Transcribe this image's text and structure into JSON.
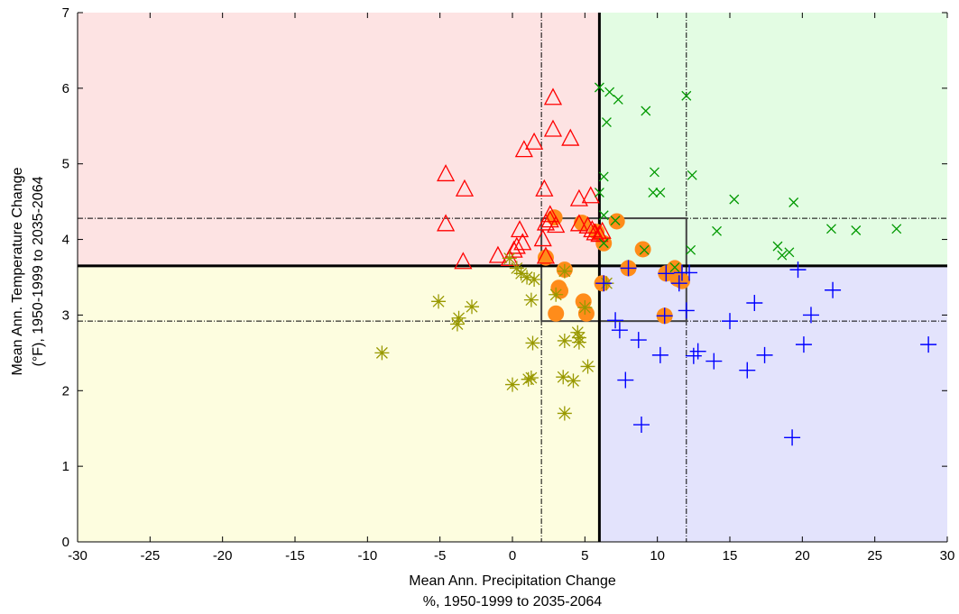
{
  "chart_data": {
    "type": "scatter",
    "title": "",
    "xlabel": [
      "Mean Ann. Precipitation Change",
      "%, 1950-1999 to 2035-2064"
    ],
    "ylabel": [
      "Mean Ann. Temperature Change",
      "(°F), 1950-1999 to 2035-2064"
    ],
    "xlim": [
      -30,
      30
    ],
    "ylim": [
      0,
      7
    ],
    "xticks": [
      -30,
      -25,
      -20,
      -15,
      -10,
      -5,
      0,
      5,
      10,
      15,
      20,
      25,
      30
    ],
    "yticks": [
      0,
      1,
      2,
      3,
      4,
      5,
      6,
      7
    ],
    "grid": false,
    "legend": "none",
    "quadrants": [
      {
        "xrange": [
          -30,
          6
        ],
        "yrange": [
          3.65,
          7
        ],
        "color": "#fde3e3"
      },
      {
        "xrange": [
          6,
          30
        ],
        "yrange": [
          3.65,
          7
        ],
        "color": "#e3fce3"
      },
      {
        "xrange": [
          -30,
          6
        ],
        "yrange": [
          0,
          3.65
        ],
        "color": "#fdfddf"
      },
      {
        "xrange": [
          6,
          30
        ],
        "yrange": [
          0,
          3.65
        ],
        "color": "#e3e3fc"
      }
    ],
    "reference_lines": {
      "median_x": 6,
      "median_y": 3.65,
      "dashed_x": [
        2,
        12
      ],
      "dashed_y": [
        2.92,
        4.28
      ]
    },
    "series": [
      {
        "marker": "triangle",
        "color": "#ff0000",
        "points": [
          [
            2.8,
            5.87
          ],
          [
            2.8,
            5.45
          ],
          [
            4.0,
            5.33
          ],
          [
            1.5,
            5.28
          ],
          [
            0.8,
            5.18
          ],
          [
            -4.6,
            4.86
          ],
          [
            -3.3,
            4.66
          ],
          [
            2.2,
            4.66
          ],
          [
            4.6,
            4.53
          ],
          [
            5.4,
            4.57
          ],
          [
            -4.6,
            4.2
          ],
          [
            0.5,
            4.12
          ],
          [
            2.6,
            4.32
          ],
          [
            2.6,
            4.25
          ],
          [
            2.3,
            4.21
          ],
          [
            3.0,
            4.18
          ],
          [
            4.6,
            4.2
          ],
          [
            5.2,
            4.17
          ],
          [
            5.5,
            4.12
          ],
          [
            6.2,
            4.1
          ],
          [
            5.7,
            4.08
          ],
          [
            6.0,
            4.06
          ],
          [
            2.1,
            4.0
          ],
          [
            0.7,
            3.95
          ],
          [
            0.3,
            3.9
          ],
          [
            0.1,
            3.85
          ],
          [
            -1.0,
            3.78
          ],
          [
            -0.2,
            3.74
          ],
          [
            2.3,
            3.77
          ],
          [
            -3.4,
            3.7
          ]
        ]
      },
      {
        "marker": "x",
        "color": "#009900",
        "points": [
          [
            6.0,
            6.01
          ],
          [
            6.7,
            5.95
          ],
          [
            7.3,
            5.85
          ],
          [
            12.0,
            5.9
          ],
          [
            6.5,
            5.55
          ],
          [
            9.2,
            5.7
          ],
          [
            6.3,
            4.83
          ],
          [
            9.8,
            4.89
          ],
          [
            12.4,
            4.85
          ],
          [
            6.0,
            4.62
          ],
          [
            9.7,
            4.62
          ],
          [
            10.2,
            4.62
          ],
          [
            15.3,
            4.53
          ],
          [
            19.4,
            4.49
          ],
          [
            6.3,
            4.32
          ],
          [
            22.0,
            4.14
          ],
          [
            23.7,
            4.12
          ],
          [
            26.5,
            4.14
          ],
          [
            14.1,
            4.11
          ],
          [
            7.1,
            4.25
          ],
          [
            12.3,
            3.86
          ],
          [
            18.3,
            3.91
          ],
          [
            18.6,
            3.79
          ],
          [
            19.1,
            3.83
          ],
          [
            6.3,
            3.95
          ],
          [
            9.1,
            3.86
          ],
          [
            11.2,
            3.63
          ]
        ]
      },
      {
        "marker": "asterisk",
        "color": "#999900",
        "points": [
          [
            -0.2,
            3.75
          ],
          [
            0.3,
            3.62
          ],
          [
            0.6,
            3.55
          ],
          [
            1.0,
            3.5
          ],
          [
            1.5,
            3.47
          ],
          [
            3.6,
            3.58
          ],
          [
            -5.1,
            3.18
          ],
          [
            -2.8,
            3.11
          ],
          [
            1.3,
            3.2
          ],
          [
            -3.7,
            2.96
          ],
          [
            -3.8,
            2.88
          ],
          [
            4.5,
            2.77
          ],
          [
            4.6,
            2.7
          ],
          [
            3.6,
            2.66
          ],
          [
            4.6,
            2.64
          ],
          [
            1.4,
            2.63
          ],
          [
            -9.0,
            2.5
          ],
          [
            5.2,
            2.32
          ],
          [
            3.5,
            2.18
          ],
          [
            1.3,
            2.17
          ],
          [
            1.1,
            2.15
          ],
          [
            4.2,
            2.13
          ],
          [
            0.0,
            2.08
          ],
          [
            3.6,
            1.7
          ],
          [
            3.0,
            3.27
          ],
          [
            5.0,
            3.1
          ],
          [
            6.5,
            3.42
          ]
        ]
      },
      {
        "marker": "plus",
        "color": "#0000ff",
        "points": [
          [
            10.6,
            3.55
          ],
          [
            11.7,
            3.56
          ],
          [
            12.2,
            3.56
          ],
          [
            19.7,
            3.6
          ],
          [
            22.1,
            3.33
          ],
          [
            11.5,
            3.42
          ],
          [
            6.3,
            3.42
          ],
          [
            8.0,
            3.62
          ],
          [
            16.7,
            3.16
          ],
          [
            12.0,
            3.06
          ],
          [
            20.6,
            3.0
          ],
          [
            10.5,
            2.99
          ],
          [
            15.0,
            2.92
          ],
          [
            7.1,
            2.93
          ],
          [
            7.4,
            2.8
          ],
          [
            8.7,
            2.67
          ],
          [
            28.7,
            2.61
          ],
          [
            20.1,
            2.61
          ],
          [
            12.8,
            2.52
          ],
          [
            12.5,
            2.46
          ],
          [
            10.2,
            2.47
          ],
          [
            17.4,
            2.47
          ],
          [
            13.9,
            2.39
          ],
          [
            16.2,
            2.27
          ],
          [
            7.8,
            2.14
          ],
          [
            8.9,
            1.55
          ],
          [
            19.3,
            1.38
          ]
        ]
      },
      {
        "marker": "circle",
        "color": "#ff8c1a",
        "points": [
          [
            7.2,
            4.24
          ],
          [
            2.9,
            4.29
          ],
          [
            4.8,
            4.22
          ],
          [
            5.8,
            4.1
          ],
          [
            6.3,
            3.95
          ],
          [
            2.3,
            3.76
          ],
          [
            9.0,
            3.87
          ],
          [
            3.6,
            3.6
          ],
          [
            8.0,
            3.62
          ],
          [
            11.2,
            3.62
          ],
          [
            10.6,
            3.55
          ],
          [
            11.4,
            3.48
          ],
          [
            11.7,
            3.45
          ],
          [
            6.2,
            3.42
          ],
          [
            3.2,
            3.36
          ],
          [
            4.9,
            3.18
          ],
          [
            3.3,
            3.32
          ],
          [
            3.0,
            3.02
          ],
          [
            5.1,
            3.02
          ],
          [
            10.5,
            2.99
          ]
        ]
      }
    ]
  }
}
